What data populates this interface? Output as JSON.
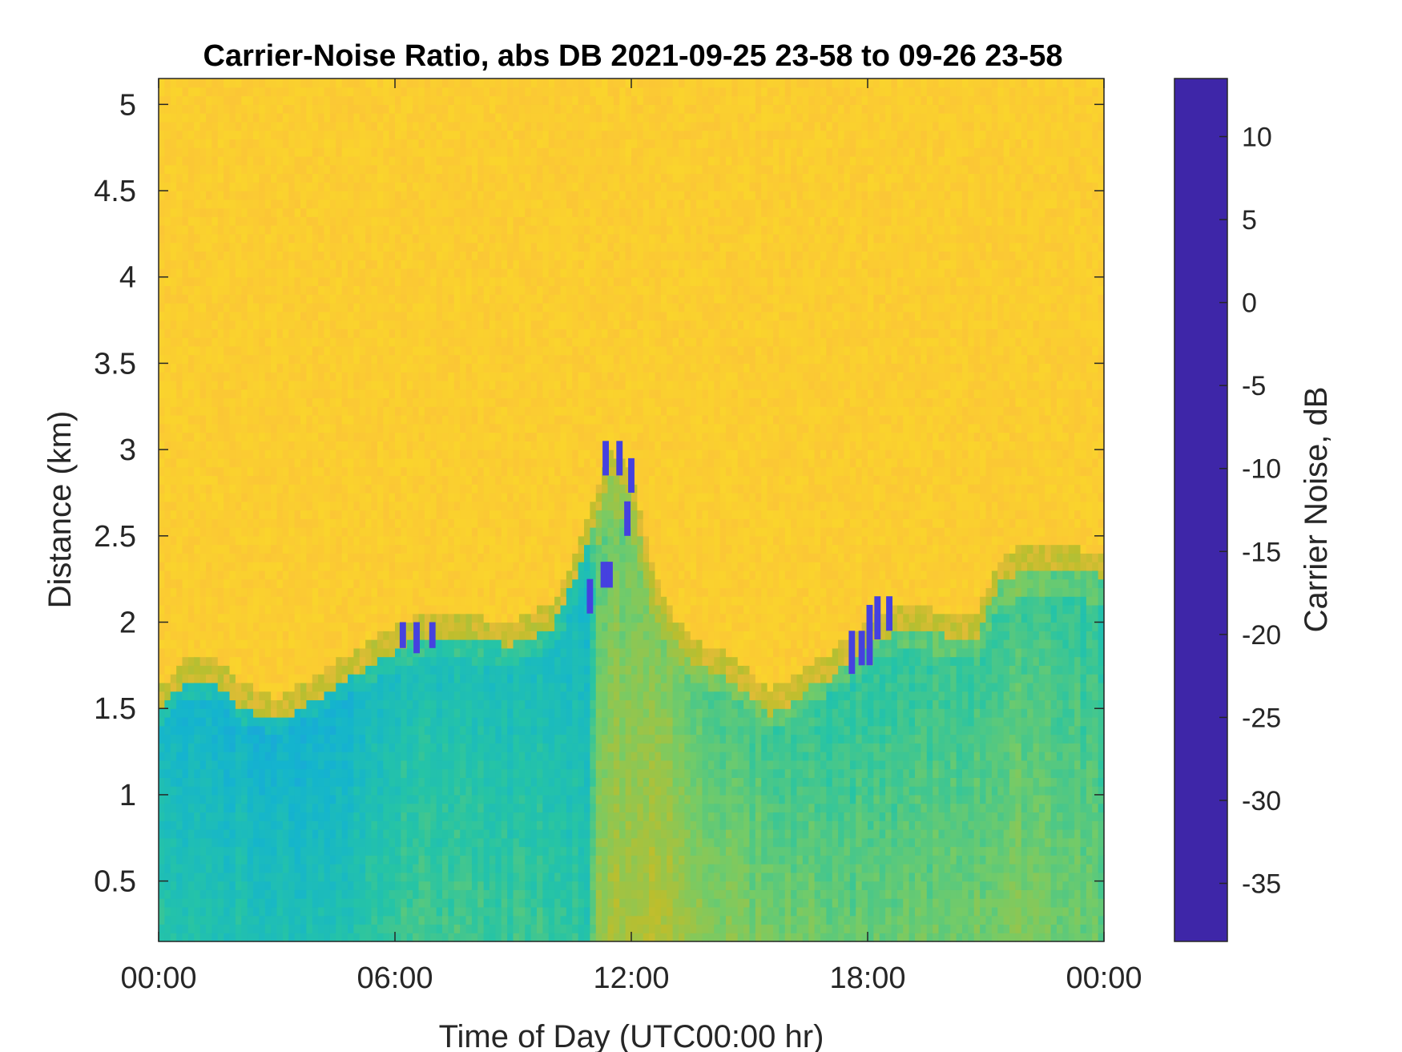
{
  "chart_data": {
    "type": "heatmap",
    "title": "Carrier-Noise Ratio, abs DB 2021-09-25 23-58 to 09-26 23-58",
    "xlabel": "Time of Day (UTC00:00 hr)",
    "ylabel": "Distance (km)",
    "x_unit": "hours of day (UTC)",
    "xlim": [
      0,
      24
    ],
    "ylim": [
      0.15,
      5.15
    ],
    "x_ticks": [
      {
        "value": 0,
        "label": "00:00"
      },
      {
        "value": 6,
        "label": "06:00"
      },
      {
        "value": 12,
        "label": "12:00"
      },
      {
        "value": 18,
        "label": "18:00"
      },
      {
        "value": 24,
        "label": "00:00"
      }
    ],
    "y_ticks": [
      {
        "value": 0.5,
        "label": "0.5"
      },
      {
        "value": 1,
        "label": "1"
      },
      {
        "value": 1.5,
        "label": "1.5"
      },
      {
        "value": 2,
        "label": "2"
      },
      {
        "value": 2.5,
        "label": "2.5"
      },
      {
        "value": 3,
        "label": "3"
      },
      {
        "value": 3.5,
        "label": "3.5"
      },
      {
        "value": 4,
        "label": "4"
      },
      {
        "value": 4.5,
        "label": "4.5"
      },
      {
        "value": 5,
        "label": "5"
      }
    ],
    "colorbar": {
      "label": "Carrier Noise, dB",
      "range": [
        -38.5,
        13.5
      ],
      "ticks": [
        {
          "value": 10,
          "label": "10"
        },
        {
          "value": 5,
          "label": "5"
        },
        {
          "value": 0,
          "label": "0"
        },
        {
          "value": -5,
          "label": "-5"
        },
        {
          "value": -10,
          "label": "-10"
        },
        {
          "value": -15,
          "label": "-15"
        },
        {
          "value": -20,
          "label": "-20"
        },
        {
          "value": -25,
          "label": "-25"
        },
        {
          "value": -30,
          "label": "-30"
        },
        {
          "value": -35,
          "label": "-35"
        }
      ],
      "colormap": "parula"
    },
    "background_level_db": -32,
    "boundary_layer_top_km": [
      [
        0,
        1.55
      ],
      [
        0.6,
        1.72
      ],
      [
        1.5,
        1.72
      ],
      [
        2.0,
        1.6
      ],
      [
        2.5,
        1.55
      ],
      [
        3.0,
        1.5
      ],
      [
        3.6,
        1.58
      ],
      [
        4.6,
        1.72
      ],
      [
        5.5,
        1.85
      ],
      [
        6.3,
        1.95
      ],
      [
        7.0,
        2.0
      ],
      [
        8.0,
        1.97
      ],
      [
        9.0,
        1.95
      ],
      [
        10.0,
        2.05
      ],
      [
        10.5,
        2.3
      ],
      [
        11.0,
        2.6
      ],
      [
        11.5,
        2.95
      ],
      [
        12.0,
        2.8
      ],
      [
        12.5,
        2.3
      ],
      [
        13.0,
        2.0
      ],
      [
        13.5,
        1.85
      ],
      [
        14.5,
        1.75
      ],
      [
        15.5,
        1.55
      ],
      [
        16.0,
        1.6
      ],
      [
        16.5,
        1.7
      ],
      [
        17.0,
        1.75
      ],
      [
        17.5,
        1.85
      ],
      [
        18.0,
        1.95
      ],
      [
        19.0,
        2.05
      ],
      [
        20.0,
        2.0
      ],
      [
        20.8,
        2.0
      ],
      [
        21.3,
        2.3
      ],
      [
        22.0,
        2.4
      ],
      [
        24.0,
        2.35
      ]
    ],
    "boundary_layer_core_db": [
      [
        0,
        -7.5
      ],
      [
        2,
        -7
      ],
      [
        4,
        -6
      ],
      [
        6,
        -9.5
      ],
      [
        8,
        -10
      ],
      [
        10,
        -9
      ],
      [
        10.9,
        -8
      ],
      [
        11.2,
        -16
      ],
      [
        12.5,
        -18
      ],
      [
        14,
        -15
      ],
      [
        16,
        -13
      ],
      [
        18,
        -12
      ],
      [
        20,
        -13
      ],
      [
        22,
        -14
      ],
      [
        24,
        -12
      ]
    ],
    "intense_returns": [
      {
        "t": 6.2,
        "d0": 1.85,
        "d1": 2.0
      },
      {
        "t": 6.55,
        "d0": 1.82,
        "d1": 2.0
      },
      {
        "t": 6.95,
        "d0": 1.85,
        "d1": 2.0
      },
      {
        "t": 10.95,
        "d0": 2.05,
        "d1": 2.25
      },
      {
        "t": 11.3,
        "d0": 2.2,
        "d1": 2.35
      },
      {
        "t": 11.45,
        "d0": 2.2,
        "d1": 2.35
      },
      {
        "t": 11.35,
        "d0": 2.85,
        "d1": 3.05
      },
      {
        "t": 11.7,
        "d0": 2.85,
        "d1": 3.05
      },
      {
        "t": 12.0,
        "d0": 2.75,
        "d1": 2.95
      },
      {
        "t": 11.9,
        "d0": 2.5,
        "d1": 2.7
      },
      {
        "t": 17.6,
        "d0": 1.7,
        "d1": 1.95
      },
      {
        "t": 17.85,
        "d0": 1.75,
        "d1": 1.95
      },
      {
        "t": 18.05,
        "d0": 1.75,
        "d1": 2.1
      },
      {
        "t": 18.25,
        "d0": 1.9,
        "d1": 2.15
      },
      {
        "t": 18.55,
        "d0": 1.95,
        "d1": 2.15
      }
    ]
  }
}
